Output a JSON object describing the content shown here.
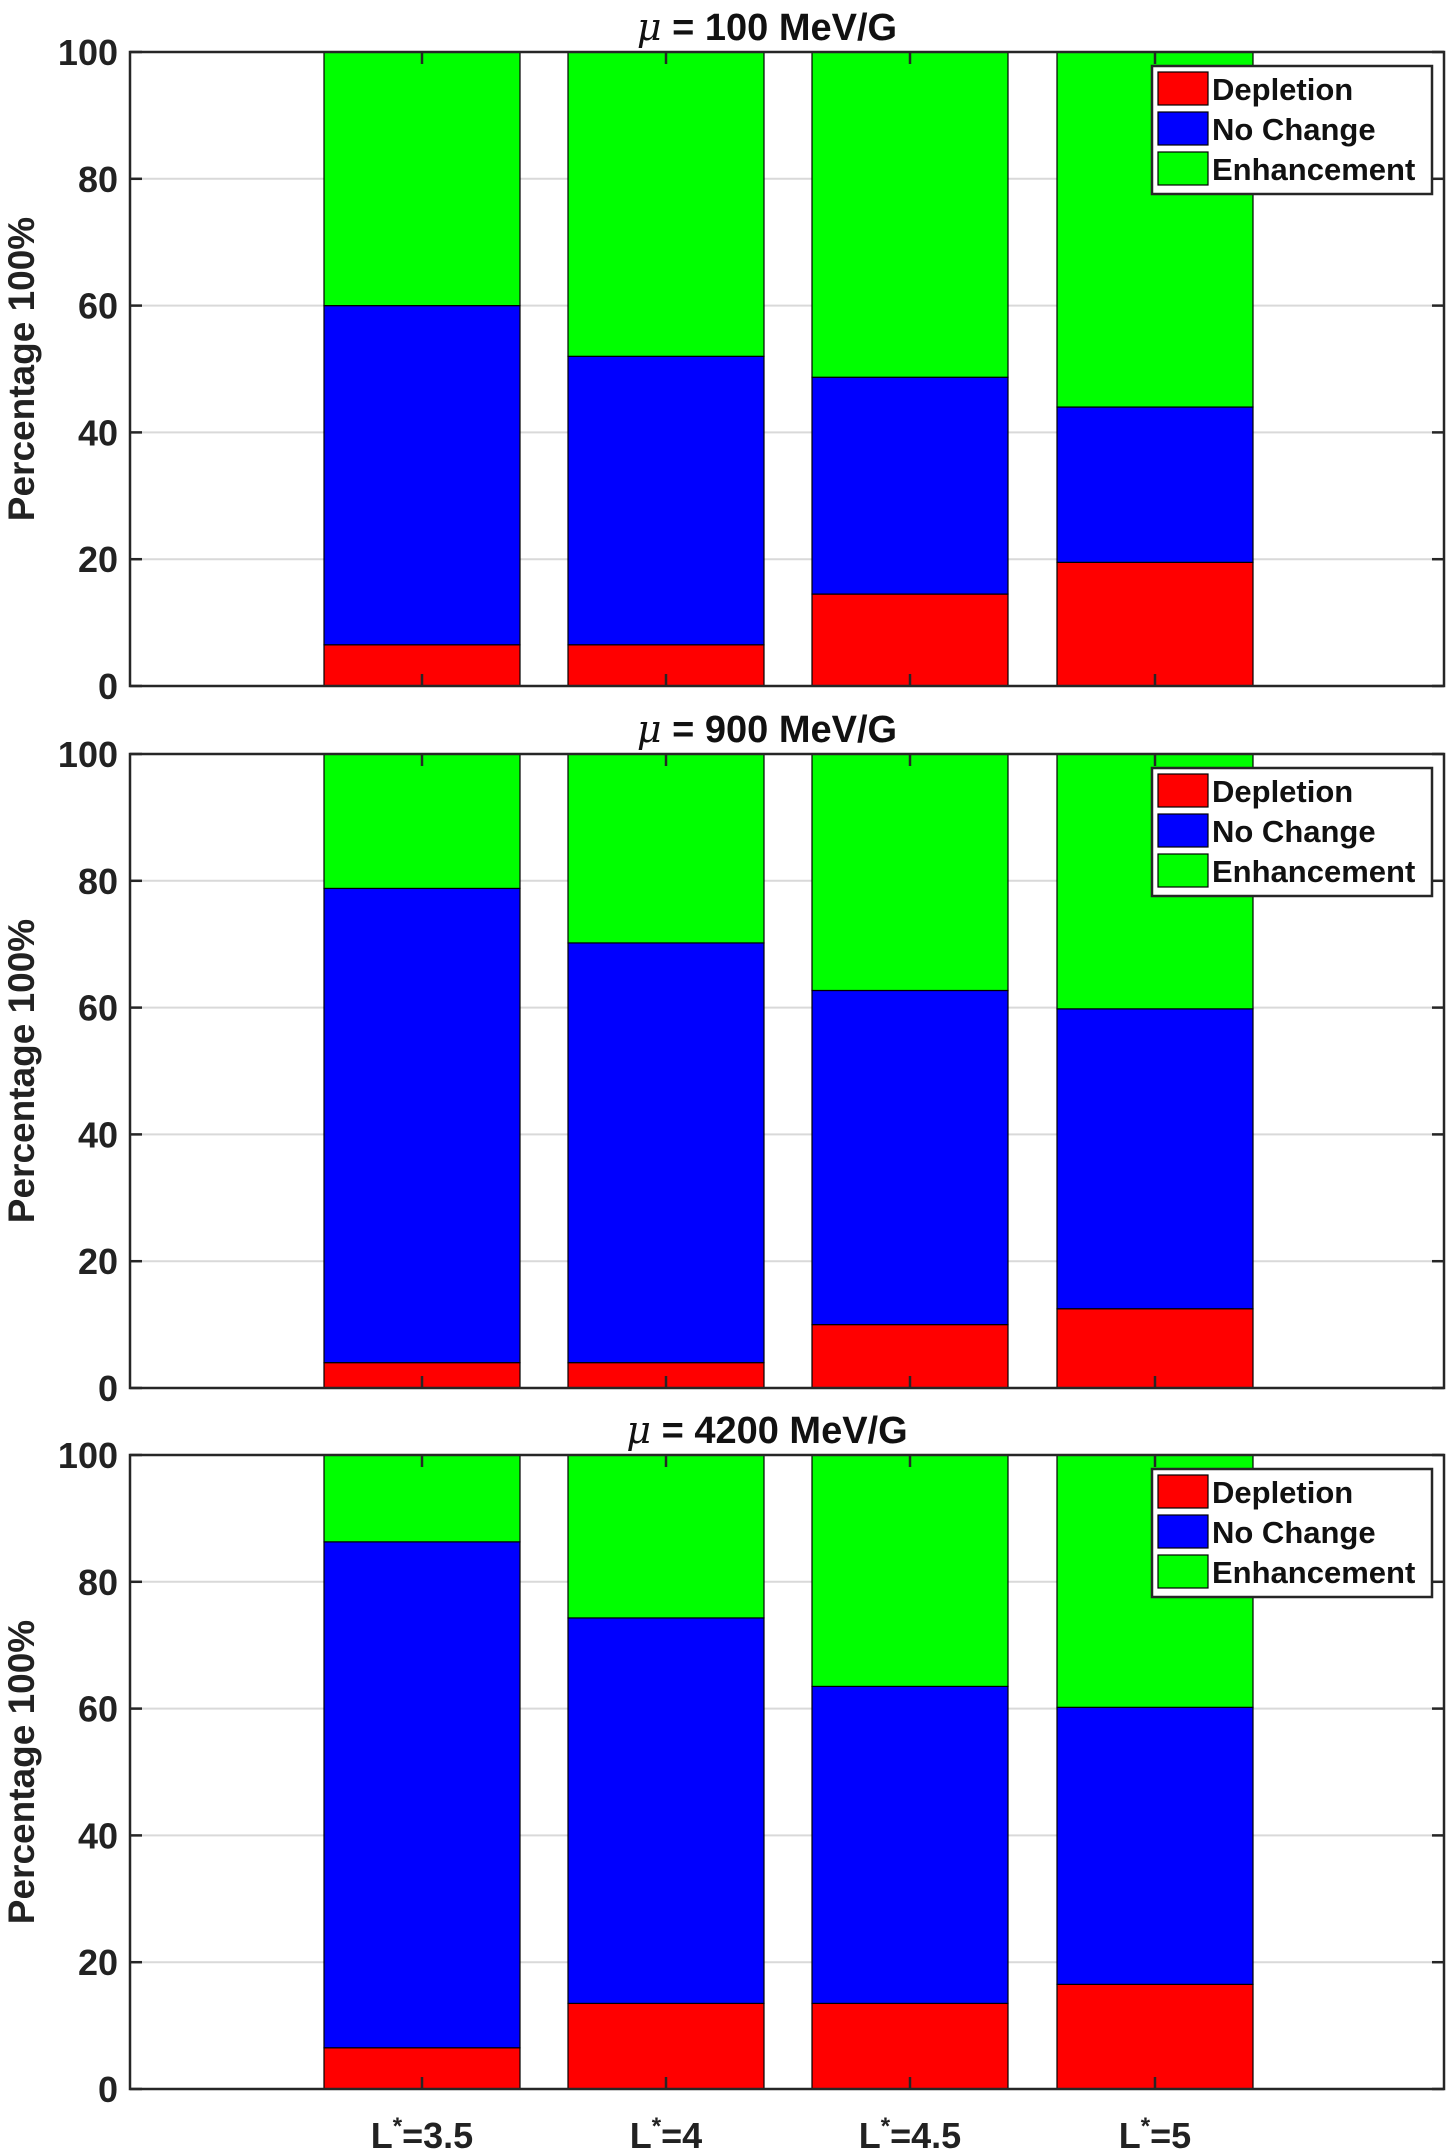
{
  "chart_data": [
    {
      "type": "bar",
      "stacked": true,
      "title_symbol": "μ",
      "title": " = 100 MeV/G",
      "ylabel": "Percentage 100%",
      "ylim": [
        0,
        100
      ],
      "yticks": [
        0,
        20,
        40,
        60,
        80,
        100
      ],
      "grid": true,
      "legend_position": "top-right",
      "categories": [
        "L*=3.5",
        "L*=4",
        "L*=4.5",
        "L*=5"
      ],
      "series": [
        {
          "name": "Depletion",
          "color": "#ff0000",
          "values": [
            6.5,
            6.5,
            14.5,
            19.5
          ]
        },
        {
          "name": "No Change",
          "color": "#0000ff",
          "values": [
            53.5,
            45.5,
            34.2,
            24.5
          ]
        },
        {
          "name": "Enhancement",
          "color": "#00ff00",
          "values": [
            40.0,
            48.0,
            51.3,
            56.0
          ]
        }
      ]
    },
    {
      "type": "bar",
      "stacked": true,
      "title_symbol": "μ",
      "title": " = 900 MeV/G",
      "ylabel": "Percentage 100%",
      "ylim": [
        0,
        100
      ],
      "yticks": [
        0,
        20,
        40,
        60,
        80,
        100
      ],
      "grid": true,
      "legend_position": "top-right",
      "categories": [
        "L*=3.5",
        "L*=4",
        "L*=4.5",
        "L*=5"
      ],
      "series": [
        {
          "name": "Depletion",
          "color": "#ff0000",
          "values": [
            4.0,
            4.0,
            10.0,
            12.5
          ]
        },
        {
          "name": "No Change",
          "color": "#0000ff",
          "values": [
            74.8,
            66.2,
            52.7,
            47.3
          ]
        },
        {
          "name": "Enhancement",
          "color": "#00ff00",
          "values": [
            21.2,
            29.8,
            37.3,
            40.2
          ]
        }
      ]
    },
    {
      "type": "bar",
      "stacked": true,
      "title_symbol": "μ",
      "title": " = 4200 MeV/G",
      "ylabel": "Percentage 100%",
      "ylim": [
        0,
        100
      ],
      "yticks": [
        0,
        20,
        40,
        60,
        80,
        100
      ],
      "grid": true,
      "legend_position": "top-right",
      "categories": [
        "L*=3.5",
        "L*=4",
        "L*=4.5",
        "L*=5"
      ],
      "series": [
        {
          "name": "Depletion",
          "color": "#ff0000",
          "values": [
            6.5,
            13.5,
            13.5,
            16.5
          ]
        },
        {
          "name": "No Change",
          "color": "#0000ff",
          "values": [
            79.8,
            60.8,
            50.0,
            43.7
          ]
        },
        {
          "name": "Enhancement",
          "color": "#00ff00",
          "values": [
            13.7,
            25.7,
            36.5,
            39.8
          ]
        }
      ]
    }
  ],
  "xaxis": {
    "labels": [
      {
        "base": "L",
        "sup": "*",
        "rest": "=3.5"
      },
      {
        "base": "L",
        "sup": "*",
        "rest": "=4"
      },
      {
        "base": "L",
        "sup": "*",
        "rest": "=4.5"
      },
      {
        "base": "L",
        "sup": "*",
        "rest": "=5"
      }
    ]
  }
}
